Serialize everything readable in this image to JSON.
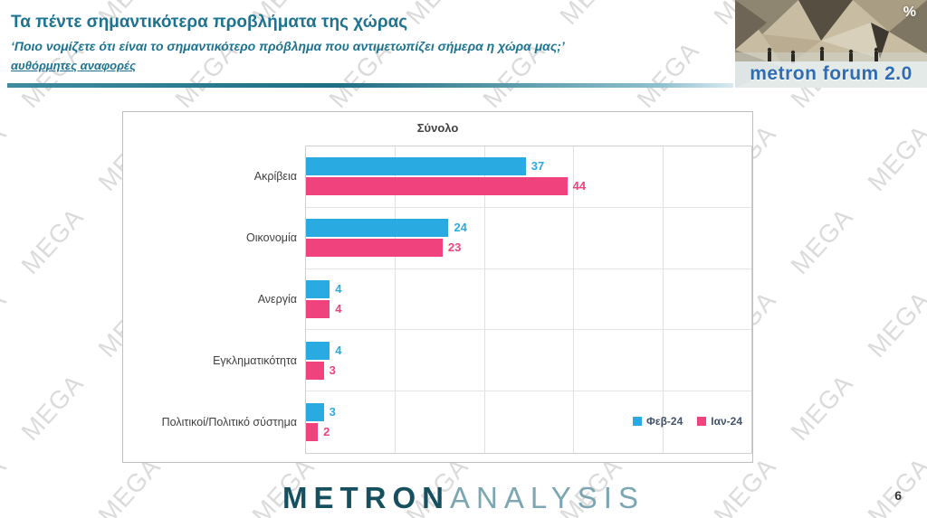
{
  "slide": {
    "page_number": "6",
    "watermark_text": "MEGA"
  },
  "header": {
    "title": "Τα πέντε σημαντικότερα προβλήματα της χώρας",
    "subtitle": "‘Ποιο νομίζετε ότι είναι το σημαντικότερο πρόβλημα που αντιμετωπίζει σήμερα η χώρα μας;’",
    "note": "αυθόρμητες αναφορές",
    "accent_color": "#1d7390"
  },
  "logo_top_right": {
    "text": "metron forum 2.0",
    "percent_sign": "%"
  },
  "footer_logo": {
    "part1": "METRON",
    "part2": "ANALYSIS"
  },
  "chart_data": {
    "type": "bar",
    "orientation": "horizontal",
    "title": "Σύνολο",
    "categories": [
      "Ακρίβεια",
      "Οικονομία",
      "Ανεργία",
      "Εγκληματικότητα",
      "Πολιτικοί/Πολιτικό σύστημα"
    ],
    "series": [
      {
        "name": "Φεβ-24",
        "color": "#29abe2",
        "values": [
          37,
          24,
          4,
          4,
          3
        ]
      },
      {
        "name": "Ιαν-24",
        "color": "#f0437e",
        "values": [
          44,
          23,
          4,
          3,
          2
        ]
      }
    ],
    "xlim": [
      0,
      75
    ],
    "gridline_interval": 15,
    "grid": true,
    "legend_position": "bottom-right"
  }
}
